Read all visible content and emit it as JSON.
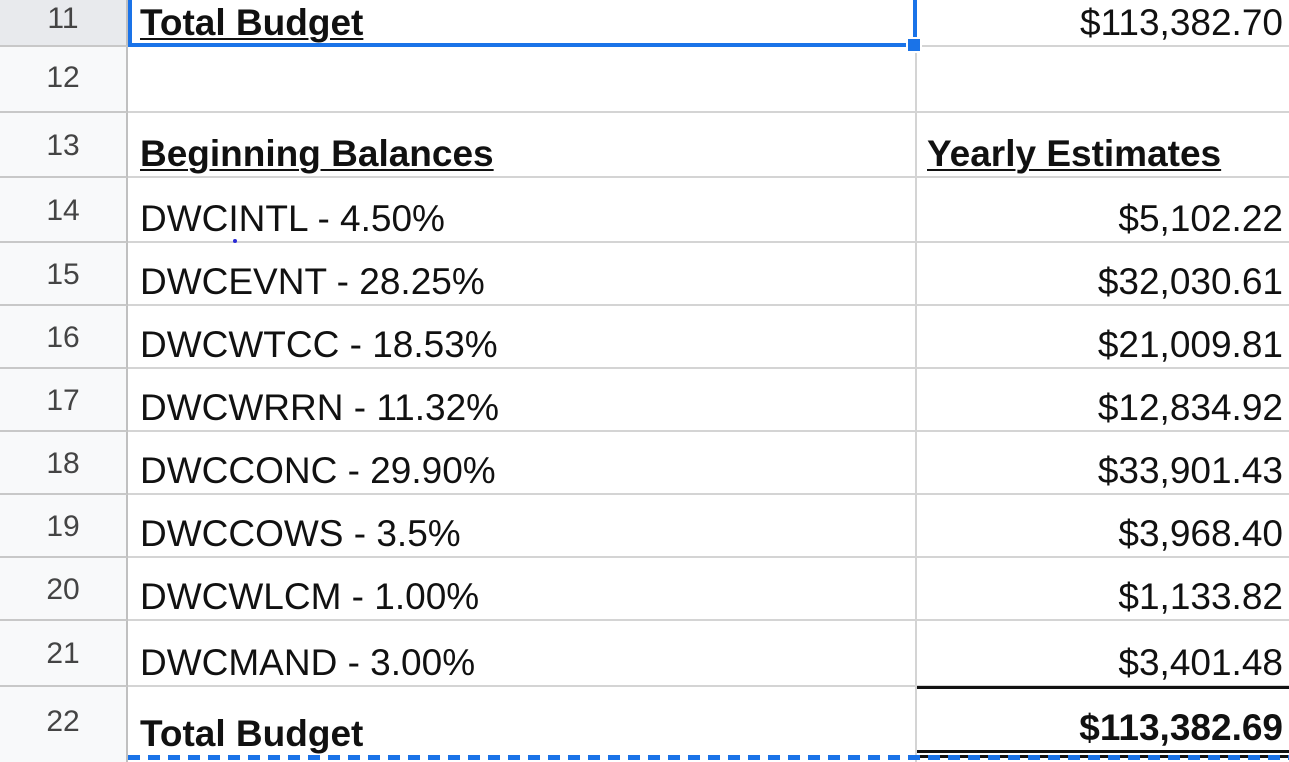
{
  "rows": [
    {
      "num": "11",
      "a": "Total Budget",
      "b": "$113,382.70"
    },
    {
      "num": "12",
      "a": "",
      "b": ""
    },
    {
      "num": "13",
      "a": "Beginning Balances",
      "b": "Yearly Estimates"
    },
    {
      "num": "14",
      "a": "DWCINTL - 4.50%",
      "b": "$5,102.22"
    },
    {
      "num": "15",
      "a": "DWCEVNT - 28.25%",
      "b": "$32,030.61"
    },
    {
      "num": "16",
      "a": "DWCWTCC - 18.53%",
      "b": "$21,009.81"
    },
    {
      "num": "17",
      "a": "DWCWRRN - 11.32%",
      "b": "$12,834.92"
    },
    {
      "num": "18",
      "a": "DWCCONC - 29.90%",
      "b": "$33,901.43"
    },
    {
      "num": "19",
      "a": "DWCCOWS - 3.5%",
      "b": "$3,968.40"
    },
    {
      "num": "20",
      "a": "DWCWLCM - 1.00%",
      "b": "$1,133.82"
    },
    {
      "num": "21",
      "a": "DWCMAND - 3.00%",
      "b": "$3,401.48"
    },
    {
      "num": "22",
      "a": "Total Budget",
      "b": "$113,382.69"
    }
  ],
  "colors": {
    "selection": "#1a73e8",
    "header_bg": "#f8f9fa",
    "gridline": "#d4d4d4"
  }
}
